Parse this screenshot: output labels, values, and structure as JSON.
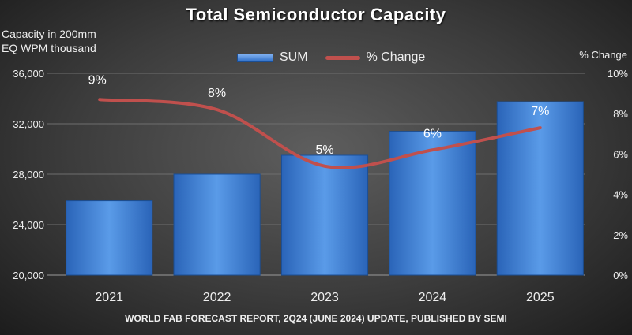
{
  "chart_data": {
    "type": "bar+line",
    "title": "Total Semiconductor Capacity",
    "ylabel_left": [
      "Capacity in 200mm",
      "EQ WPM thousand"
    ],
    "ylabel_right": "% Change",
    "categories": [
      "2021",
      "2022",
      "2023",
      "2024",
      "2025"
    ],
    "series": [
      {
        "name": "SUM",
        "type": "bar",
        "axis": "left",
        "values": [
          25900,
          28000,
          29500,
          31400,
          33750
        ],
        "color": "#3a7bd5"
      },
      {
        "name": "% Change",
        "type": "line",
        "axis": "right",
        "values": [
          8.7,
          8.2,
          5.4,
          6.2,
          7.3
        ],
        "data_labels": [
          "9%",
          "8%",
          "5%",
          "6%",
          "7%"
        ],
        "color": "#c0504d"
      }
    ],
    "ylim_left": [
      20000,
      36000
    ],
    "yticks_left": [
      "20,000",
      "24,000",
      "28,000",
      "32,000",
      "36,000"
    ],
    "ylim_right": [
      0,
      10
    ],
    "yticks_right": [
      "0%",
      "2%",
      "4%",
      "6%",
      "8%",
      "10%"
    ],
    "grid": true,
    "legend": "top-center",
    "source": "WORLD FAB FORECAST REPORT, 2Q24 (JUNE 2024) UPDATE, PUBLISHED BY SEMI"
  }
}
